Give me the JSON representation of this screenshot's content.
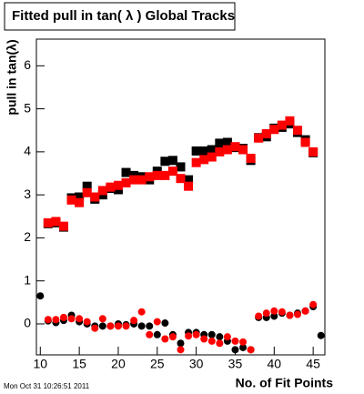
{
  "chart_data": {
    "type": "scatter",
    "title": "Fitted pull in tan( λ )  Global Tracks",
    "x_label": "No. of Fit Points",
    "y_label": "pull in tan(λ)",
    "timestamp": "Mon Oct 31 10:26:51 2011",
    "xlim": [
      9.5,
      46.5
    ],
    "ylim": [
      -0.72,
      6.62
    ],
    "xticks": [
      10,
      15,
      20,
      25,
      30,
      35,
      40,
      45
    ],
    "yticks": [
      0,
      1,
      2,
      3,
      4,
      5,
      6
    ],
    "series": [
      {
        "color": "#000000",
        "marker": "square",
        "x": [
          11,
          12,
          13,
          14,
          15,
          16,
          17,
          18,
          19,
          20,
          21,
          22,
          23,
          24,
          25,
          26,
          27,
          28,
          29,
          30,
          31,
          32,
          33,
          34,
          35,
          36,
          37,
          38,
          39,
          40,
          41,
          42,
          43,
          44,
          45
        ],
        "values": [
          2.33,
          2.35,
          2.25,
          2.93,
          2.95,
          3.2,
          2.9,
          3.0,
          3.15,
          3.12,
          3.52,
          3.45,
          3.42,
          3.35,
          3.55,
          3.78,
          3.8,
          3.65,
          3.35,
          4.02,
          4.02,
          4.05,
          4.2,
          4.22,
          4.1,
          4.08,
          3.8,
          4.33,
          4.35,
          4.55,
          4.57,
          4.65,
          4.45,
          4.28,
          3.98
        ]
      },
      {
        "color": "#ff0000",
        "marker": "square",
        "x": [
          11,
          12,
          13,
          14,
          15,
          16,
          17,
          18,
          19,
          20,
          21,
          22,
          23,
          24,
          25,
          26,
          27,
          28,
          29,
          30,
          31,
          32,
          33,
          34,
          35,
          36,
          37,
          38,
          39,
          40,
          41,
          42,
          43,
          44,
          45
        ],
        "values": [
          2.35,
          2.38,
          2.27,
          2.88,
          2.82,
          3.05,
          2.95,
          3.1,
          3.18,
          3.22,
          3.28,
          3.35,
          3.35,
          3.42,
          3.45,
          3.45,
          3.55,
          3.38,
          3.2,
          3.75,
          3.82,
          3.88,
          4.0,
          4.05,
          4.12,
          4.05,
          3.85,
          4.32,
          4.42,
          4.52,
          4.62,
          4.72,
          4.5,
          4.22,
          4.0
        ]
      },
      {
        "color": "#000000",
        "marker": "circle",
        "x": [
          10,
          11,
          12,
          13,
          14,
          15,
          16,
          17,
          18,
          19,
          20,
          21,
          22,
          23,
          24,
          25,
          26,
          27,
          28,
          29,
          30,
          31,
          32,
          33,
          34,
          35,
          36,
          37,
          38,
          39,
          40,
          41,
          42,
          43,
          44,
          45,
          46
        ],
        "values": [
          0.65,
          0.07,
          0.03,
          0.08,
          0.2,
          0.05,
          0.0,
          -0.05,
          -0.05,
          -0.05,
          0.0,
          -0.02,
          0.0,
          -0.05,
          -0.05,
          -0.25,
          0.02,
          -0.25,
          -0.45,
          -0.2,
          -0.2,
          -0.25,
          -0.25,
          -0.3,
          -0.4,
          -0.6,
          -0.55,
          -0.6,
          0.15,
          0.15,
          0.18,
          0.25,
          0.2,
          0.25,
          0.3,
          0.4,
          -0.27
        ]
      },
      {
        "color": "#ff0000",
        "marker": "circle",
        "x": [
          11,
          12,
          13,
          14,
          15,
          16,
          17,
          18,
          19,
          20,
          21,
          22,
          23,
          24,
          25,
          26,
          27,
          28,
          29,
          30,
          31,
          32,
          33,
          34,
          35,
          36,
          37,
          38,
          39,
          40,
          41,
          42,
          43,
          44,
          45
        ],
        "values": [
          0.1,
          0.1,
          0.15,
          0.12,
          0.12,
          0.05,
          -0.1,
          0.12,
          -0.05,
          -0.05,
          -0.05,
          0.08,
          0.28,
          -0.25,
          0.05,
          -0.35,
          -0.3,
          -0.6,
          -0.28,
          -0.25,
          -0.35,
          -0.4,
          -0.45,
          -0.3,
          -0.4,
          -0.42,
          -0.6,
          0.18,
          0.25,
          0.3,
          0.28,
          0.2,
          0.22,
          0.3,
          0.45
        ]
      }
    ]
  }
}
